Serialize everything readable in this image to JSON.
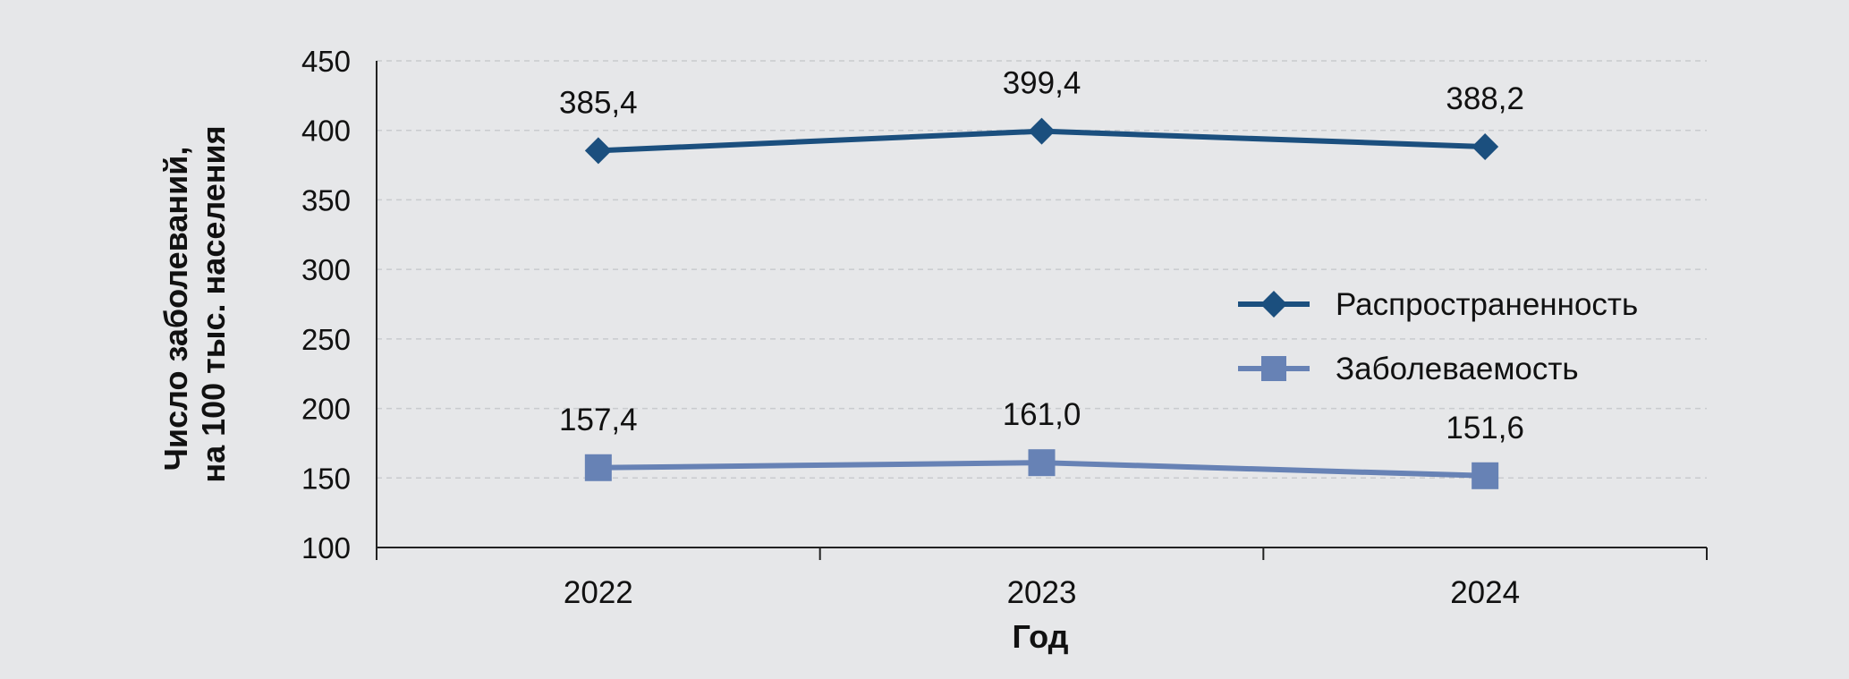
{
  "chart_data": {
    "type": "line",
    "categories": [
      "2022",
      "2023",
      "2024"
    ],
    "series": [
      {
        "name": "Распространенность",
        "values": [
          385.4,
          399.4,
          388.2
        ],
        "labels": [
          "385,4",
          "399,4",
          "388,2"
        ],
        "color": "#1b4f7e",
        "marker": "diamond"
      },
      {
        "name": "Заболеваемость",
        "values": [
          157.4,
          161.0,
          151.6
        ],
        "labels": [
          "157,4",
          "161,0",
          "151,6"
        ],
        "color": "#6782b5",
        "marker": "square"
      }
    ],
    "xlabel": "Год",
    "ylabel_lines": [
      "Число заболеваний,",
      "на 100 тыс. населения"
    ],
    "ylim": [
      100,
      450
    ],
    "yticks": [
      100,
      150,
      200,
      250,
      300,
      350,
      400,
      450
    ],
    "grid": true,
    "legend_position": "right"
  }
}
